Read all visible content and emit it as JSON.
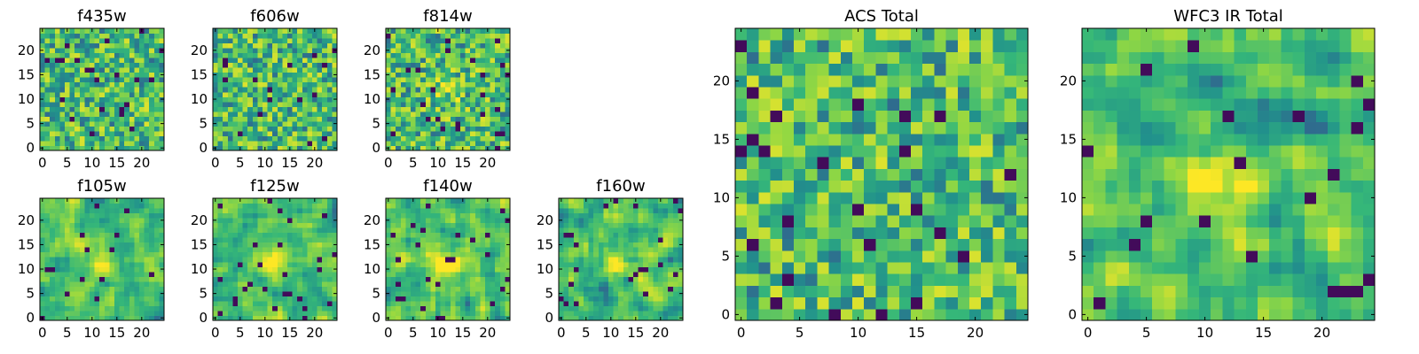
{
  "chart_data": [
    {
      "type": "heatmap",
      "title": "f435w",
      "xticks": [
        0,
        5,
        10,
        15,
        20
      ],
      "yticks": [
        0,
        5,
        10,
        15,
        20
      ],
      "xlim": [
        -0.5,
        24.5
      ],
      "ylim": [
        -0.5,
        24.5
      ],
      "grid_size": 25,
      "pattern": "noise",
      "seed": 11
    },
    {
      "type": "heatmap",
      "title": "f606w",
      "xticks": [
        0,
        5,
        10,
        15,
        20
      ],
      "yticks": [
        0,
        5,
        10,
        15,
        20
      ],
      "xlim": [
        -0.5,
        24.5
      ],
      "ylim": [
        -0.5,
        24.5
      ],
      "grid_size": 25,
      "pattern": "noise",
      "seed": 23
    },
    {
      "type": "heatmap",
      "title": "f814w",
      "xticks": [
        0,
        5,
        10,
        15,
        20
      ],
      "yticks": [
        0,
        5,
        10,
        15,
        20
      ],
      "xlim": [
        -0.5,
        24.5
      ],
      "ylim": [
        -0.5,
        24.5
      ],
      "grid_size": 25,
      "pattern": "noise-source",
      "seed": 37
    },
    {
      "type": "heatmap",
      "title": "f105w",
      "xticks": [
        0,
        5,
        10,
        15,
        20
      ],
      "yticks": [
        0,
        5,
        10,
        15,
        20
      ],
      "xlim": [
        -0.5,
        24.5
      ],
      "ylim": [
        -0.5,
        24.5
      ],
      "grid_size": 25,
      "pattern": "smooth-source",
      "seed": 41
    },
    {
      "type": "heatmap",
      "title": "f125w",
      "xticks": [
        0,
        5,
        10,
        15,
        20
      ],
      "yticks": [
        0,
        5,
        10,
        15,
        20
      ],
      "xlim": [
        -0.5,
        24.5
      ],
      "ylim": [
        -0.5,
        24.5
      ],
      "grid_size": 25,
      "pattern": "smooth-source",
      "seed": 53
    },
    {
      "type": "heatmap",
      "title": "f140w",
      "xticks": [
        0,
        5,
        10,
        15,
        20
      ],
      "yticks": [
        0,
        5,
        10,
        15,
        20
      ],
      "xlim": [
        -0.5,
        24.5
      ],
      "ylim": [
        -0.5,
        24.5
      ],
      "grid_size": 25,
      "pattern": "smooth-source",
      "seed": 67
    },
    {
      "type": "heatmap",
      "title": "f160w",
      "xticks": [
        0,
        5,
        10,
        15,
        20
      ],
      "yticks": [
        0,
        5,
        10,
        15,
        20
      ],
      "xlim": [
        -0.5,
        24.5
      ],
      "ylim": [
        -0.5,
        24.5
      ],
      "grid_size": 25,
      "pattern": "smooth-source",
      "seed": 79
    },
    {
      "type": "heatmap",
      "title": "ACS Total",
      "xticks": [
        0,
        5,
        10,
        15,
        20
      ],
      "yticks": [
        0,
        5,
        10,
        15,
        20
      ],
      "xlim": [
        -0.5,
        24.5
      ],
      "ylim": [
        -0.5,
        24.5
      ],
      "grid_size": 25,
      "pattern": "noise",
      "seed": 83
    },
    {
      "type": "heatmap",
      "title": "WFC3 IR Total",
      "xticks": [
        0,
        5,
        10,
        15,
        20
      ],
      "yticks": [
        0,
        5,
        10,
        15,
        20
      ],
      "xlim": [
        -0.5,
        24.5
      ],
      "ylim": [
        -0.5,
        24.5
      ],
      "grid_size": 25,
      "pattern": "smooth-source",
      "seed": 97
    }
  ],
  "colormap": [
    "#440154",
    "#31688e",
    "#21918c",
    "#35b779",
    "#90d743",
    "#fde725"
  ]
}
